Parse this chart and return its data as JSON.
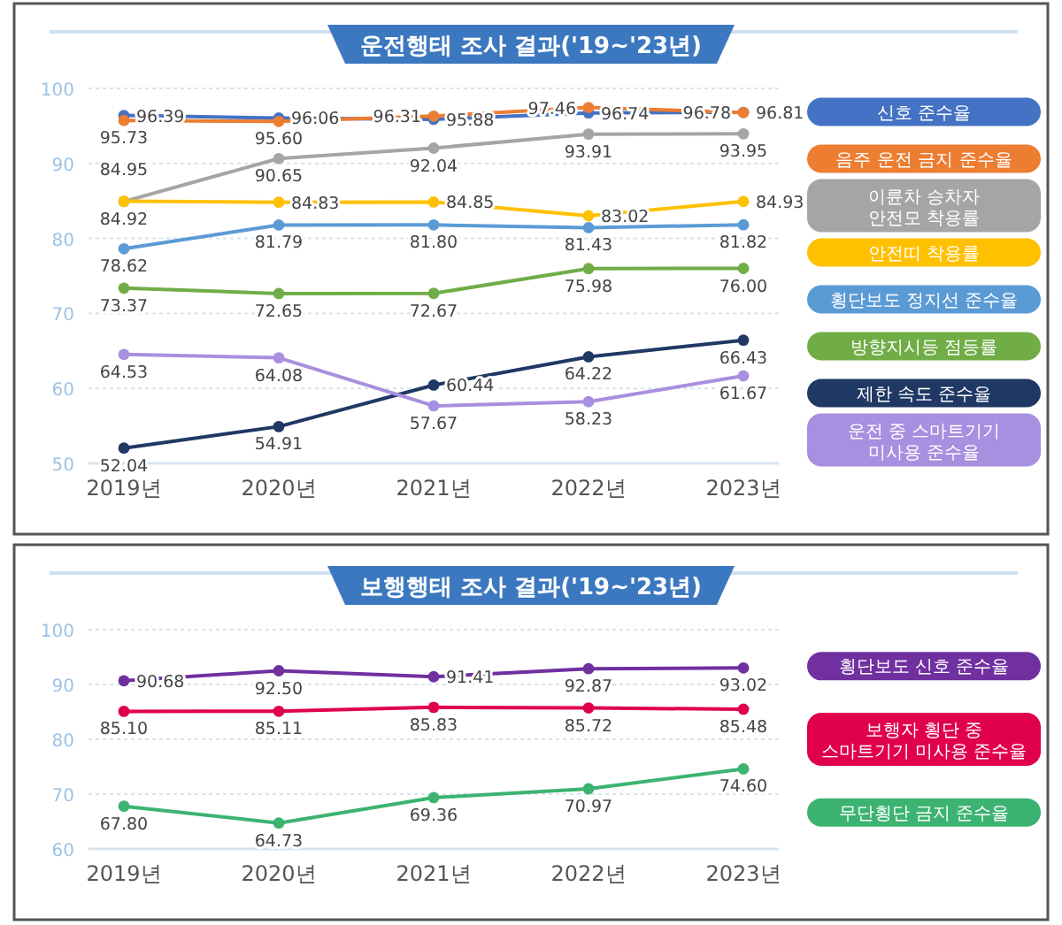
{
  "chart_data": [
    {
      "type": "line",
      "title": "운전행태 조사 결과('19~'23년)",
      "categories": [
        "2019년",
        "2020년",
        "2021년",
        "2022년",
        "2023년"
      ],
      "ylim": [
        50,
        100
      ],
      "yticks": [
        100,
        90,
        80,
        70,
        60,
        50
      ],
      "grid": "y",
      "legend": "right",
      "marker": "circle",
      "series": [
        {
          "name": "신호 준수율",
          "color": "#4472c4",
          "values": [
            96.39,
            96.06,
            95.88,
            96.74,
            96.81
          ],
          "value_labels": [
            "96.39",
            "96.06",
            "95.88",
            "96.74",
            "96.81"
          ]
        },
        {
          "name": "음주 운전 금지 준수율",
          "color": "#ed7d31",
          "values": [
            95.73,
            95.6,
            96.31,
            97.46,
            96.78
          ],
          "value_labels": [
            "95.73",
            "95.60",
            "96.31",
            "97.46",
            "96.78"
          ]
        },
        {
          "name": "이륜차 승차자 안전모 착용률",
          "color": "#a5a5a5",
          "values": [
            84.92,
            90.65,
            92.04,
            93.91,
            93.95
          ],
          "value_labels": [
            "84.92",
            "90.65",
            "92.04",
            "93.91",
            "93.95"
          ]
        },
        {
          "name": "안전띠 착용률",
          "color": "#ffc000",
          "values": [
            84.95,
            84.83,
            84.85,
            83.02,
            84.93
          ],
          "value_labels": [
            "84.95",
            "84.83",
            "84.85",
            "83.02",
            "84.93"
          ]
        },
        {
          "name": "횡단보도 정지선 준수율",
          "color": "#5b9bd5",
          "values": [
            78.62,
            81.79,
            81.8,
            81.43,
            81.82
          ],
          "value_labels": [
            "78.62",
            "81.79",
            "81.80",
            "81.43",
            "81.82"
          ]
        },
        {
          "name": "방향지시등 점등률",
          "color": "#70ad47",
          "values": [
            73.37,
            72.65,
            72.67,
            75.98,
            76.0
          ],
          "value_labels": [
            "73.37",
            "72.65",
            "72.67",
            "75.98",
            "76.00"
          ]
        },
        {
          "name": "제한 속도 준수율",
          "color": "#1f3864",
          "values": [
            52.04,
            54.91,
            60.44,
            64.22,
            66.43
          ],
          "value_labels": [
            "52.04",
            "54.91",
            "60.44",
            "64.22",
            "66.43"
          ]
        },
        {
          "name": "운전 중 스마트기기 미사용 준수율",
          "color": "#a88fe0",
          "values": [
            64.53,
            64.08,
            57.67,
            58.23,
            61.67
          ],
          "value_labels": [
            "64.53",
            "64.08",
            "57.67",
            "58.23",
            "61.67"
          ]
        }
      ]
    },
    {
      "type": "line",
      "title": "보행행태 조사 결과('19~'23년)",
      "categories": [
        "2019년",
        "2020년",
        "2021년",
        "2022년",
        "2023년"
      ],
      "ylim": [
        60,
        100
      ],
      "yticks": [
        100,
        90,
        80,
        70,
        60
      ],
      "grid": "y",
      "legend": "right",
      "marker": "circle",
      "series": [
        {
          "name": "횡단보도 신호 준수율",
          "color": "#7030a0",
          "values": [
            90.68,
            92.5,
            91.41,
            92.87,
            93.02
          ],
          "value_labels": [
            "90.68",
            "92.50",
            "91.41",
            "92.87",
            "93.02"
          ]
        },
        {
          "name": "보행자 횡단 중 스마트기기 미사용 준수율",
          "color": "#e0004d",
          "values": [
            85.1,
            85.11,
            85.83,
            85.72,
            85.48
          ],
          "value_labels": [
            "85.10",
            "85.11",
            "85.83",
            "85.72",
            "85.48"
          ]
        },
        {
          "name": "무단횡단 금지 준수율",
          "color": "#3cb371",
          "values": [
            67.8,
            64.73,
            69.36,
            70.97,
            74.6
          ],
          "value_labels": [
            "67.80",
            "64.73",
            "69.36",
            "70.97",
            "74.60"
          ]
        }
      ]
    }
  ]
}
